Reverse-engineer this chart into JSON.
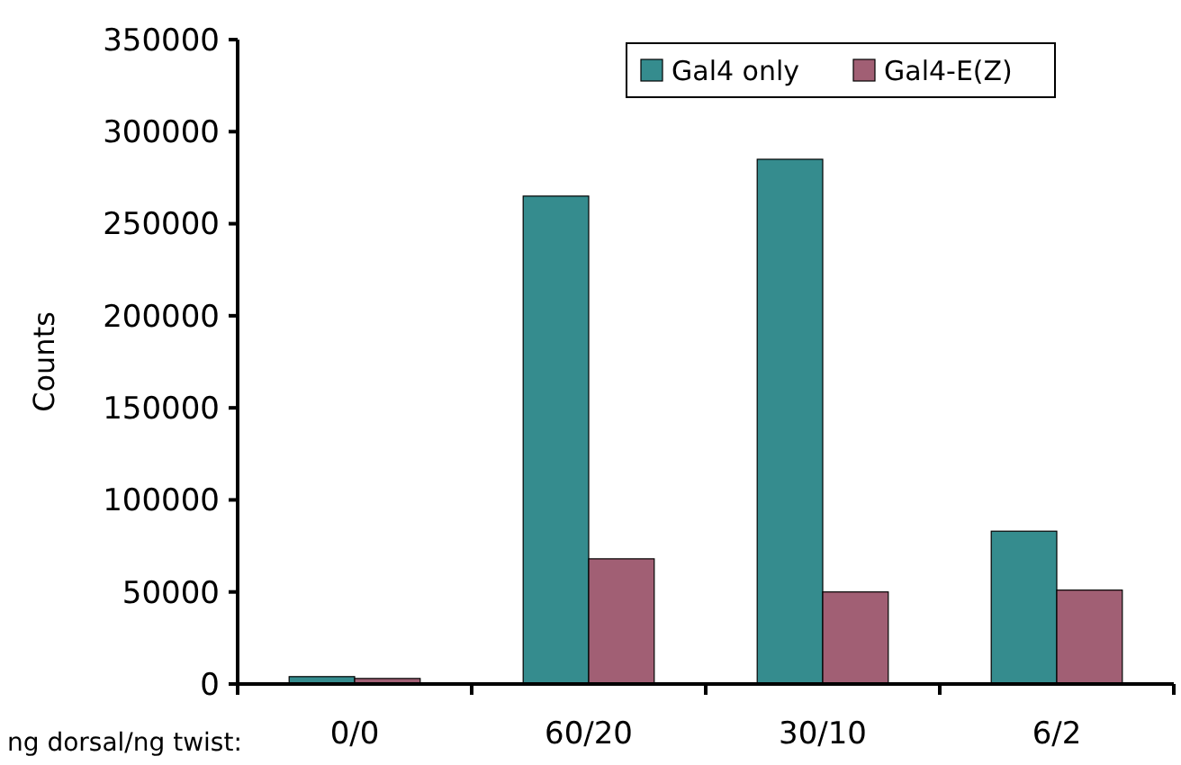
{
  "chart_data": {
    "type": "bar",
    "ylabel": "Counts",
    "xlabel": "ng dorsal/ng twist:",
    "categories": [
      "0/0",
      "60/20",
      "30/10",
      "6/2"
    ],
    "series": [
      {
        "name": "Gal4 only",
        "color": "#358c8e",
        "values": [
          4000,
          265000,
          285000,
          83000
        ]
      },
      {
        "name": "Gal4-E(Z)",
        "color": "#a15f74",
        "values": [
          3000,
          68000,
          50000,
          51000
        ]
      }
    ],
    "ylim": [
      0,
      350000
    ],
    "yticks": [
      0,
      50000,
      100000,
      150000,
      200000,
      250000,
      300000,
      350000
    ],
    "grid": false,
    "legend": "top right"
  }
}
